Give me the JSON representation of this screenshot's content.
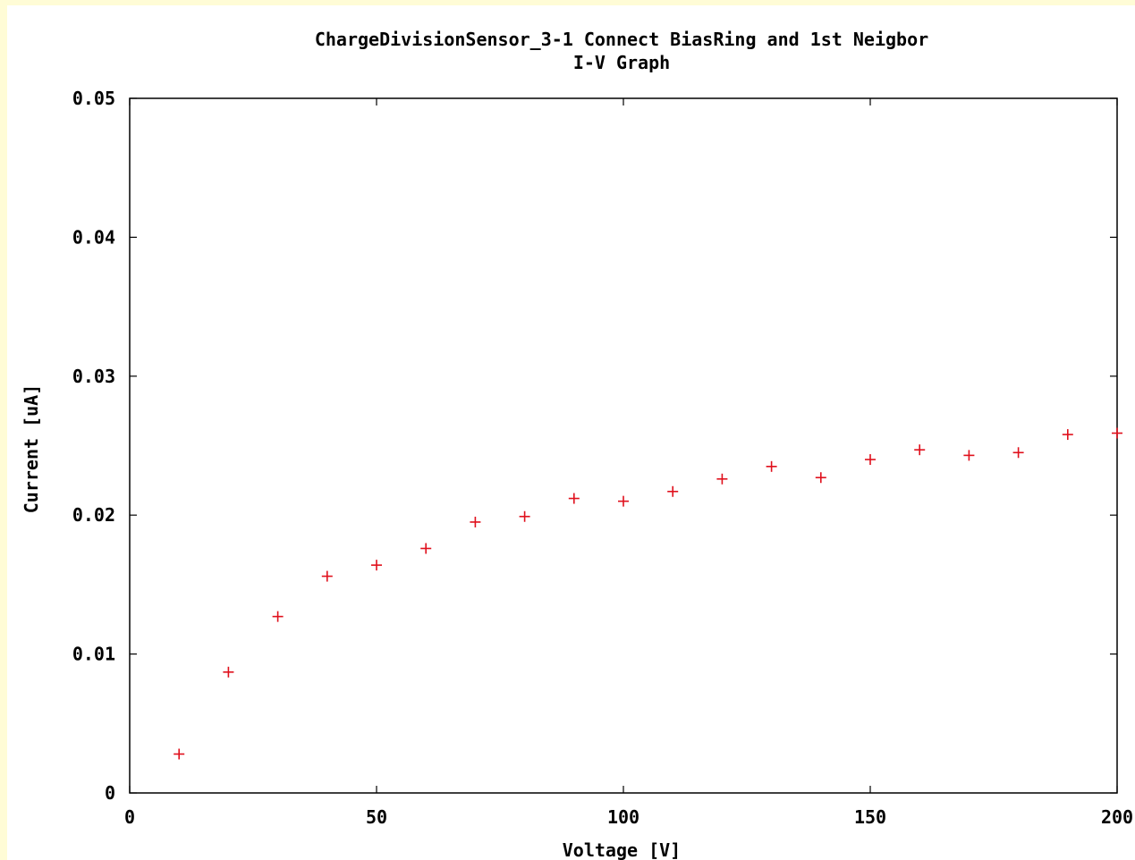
{
  "chart_data": {
    "type": "scatter",
    "title": "ChargeDivisionSensor_3-1 Connect BiasRing and 1st Neigbor",
    "subtitle": "I-V Graph",
    "xlabel": "Voltage [V]",
    "ylabel": "Current [uA]",
    "xlim": [
      0,
      200
    ],
    "ylim": [
      0,
      0.05
    ],
    "xticks": [
      0,
      50,
      100,
      150,
      200
    ],
    "xtick_labels": [
      "0",
      "50",
      "100",
      "150",
      "200"
    ],
    "yticks": [
      0,
      0.01,
      0.02,
      0.03,
      0.04,
      0.05
    ],
    "ytick_labels": [
      "0",
      "0.01",
      "0.02",
      "0.03",
      "0.04",
      "0.05"
    ],
    "grid": false,
    "legend": false,
    "marker": "+",
    "color": "#e0101c",
    "x": [
      10,
      20,
      30,
      40,
      50,
      60,
      70,
      80,
      90,
      100,
      110,
      120,
      130,
      140,
      150,
      160,
      170,
      180,
      190,
      200
    ],
    "y": [
      0.0028,
      0.0087,
      0.0127,
      0.0156,
      0.0164,
      0.0176,
      0.0195,
      0.0199,
      0.0212,
      0.021,
      0.0217,
      0.0226,
      0.0235,
      0.0227,
      0.024,
      0.0247,
      0.0243,
      0.0245,
      0.0258,
      0.0259
    ]
  }
}
